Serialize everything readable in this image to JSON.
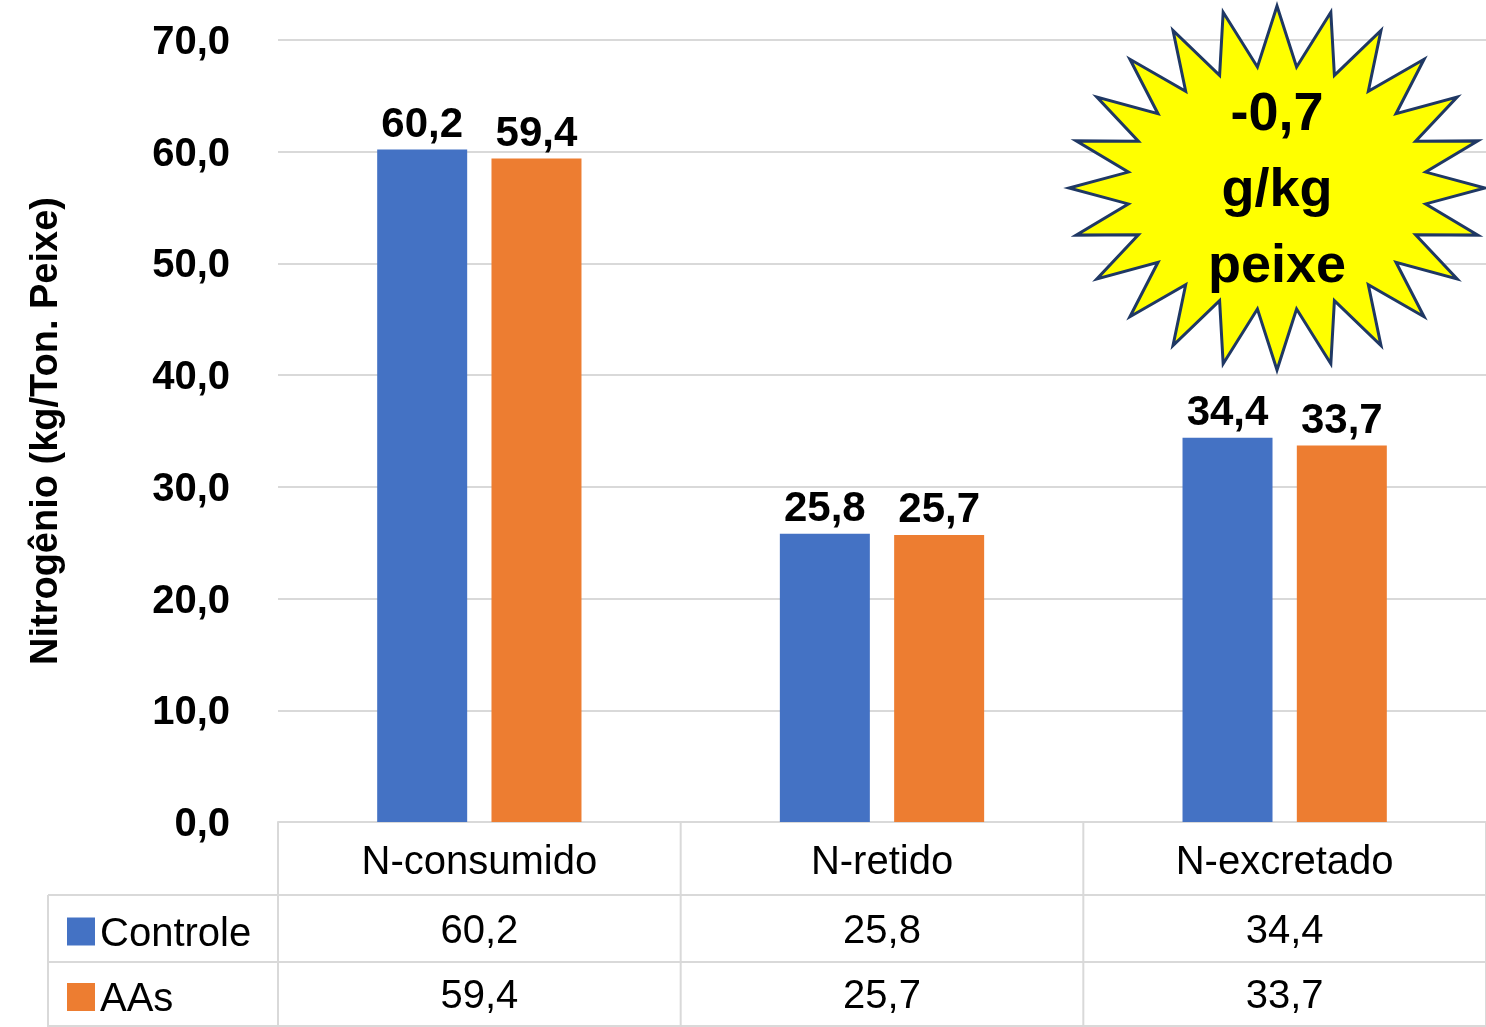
{
  "chart_data": {
    "type": "bar",
    "ylabel": "Nitrogênio (kg/Ton. Peixe)",
    "categories": [
      "N-consumido",
      "N-retido",
      "N-excretado"
    ],
    "series": [
      {
        "name": "Controle",
        "color": "#4472c4",
        "values": [
          60.2,
          25.8,
          34.4
        ],
        "value_labels": [
          "60,2",
          "25,8",
          "34,4"
        ]
      },
      {
        "name": "AAs",
        "color": "#ed7d31",
        "values": [
          59.4,
          25.7,
          33.7
        ],
        "value_labels": [
          "59,4",
          "25,7",
          "33,7"
        ]
      }
    ],
    "ylim": [
      0,
      70
    ],
    "yticks": [
      {
        "value": 0,
        "label": "0,0"
      },
      {
        "value": 10,
        "label": "10,0"
      },
      {
        "value": 20,
        "label": "20,0"
      },
      {
        "value": 30,
        "label": "30,0"
      },
      {
        "value": 40,
        "label": "40,0"
      },
      {
        "value": 50,
        "label": "50,0"
      },
      {
        "value": 60,
        "label": "60,0"
      },
      {
        "value": 70,
        "label": "70,0"
      }
    ],
    "grid": "y",
    "legend": "bottom left",
    "annotations": [
      "-0,7 g/kg peixe"
    ]
  }
}
